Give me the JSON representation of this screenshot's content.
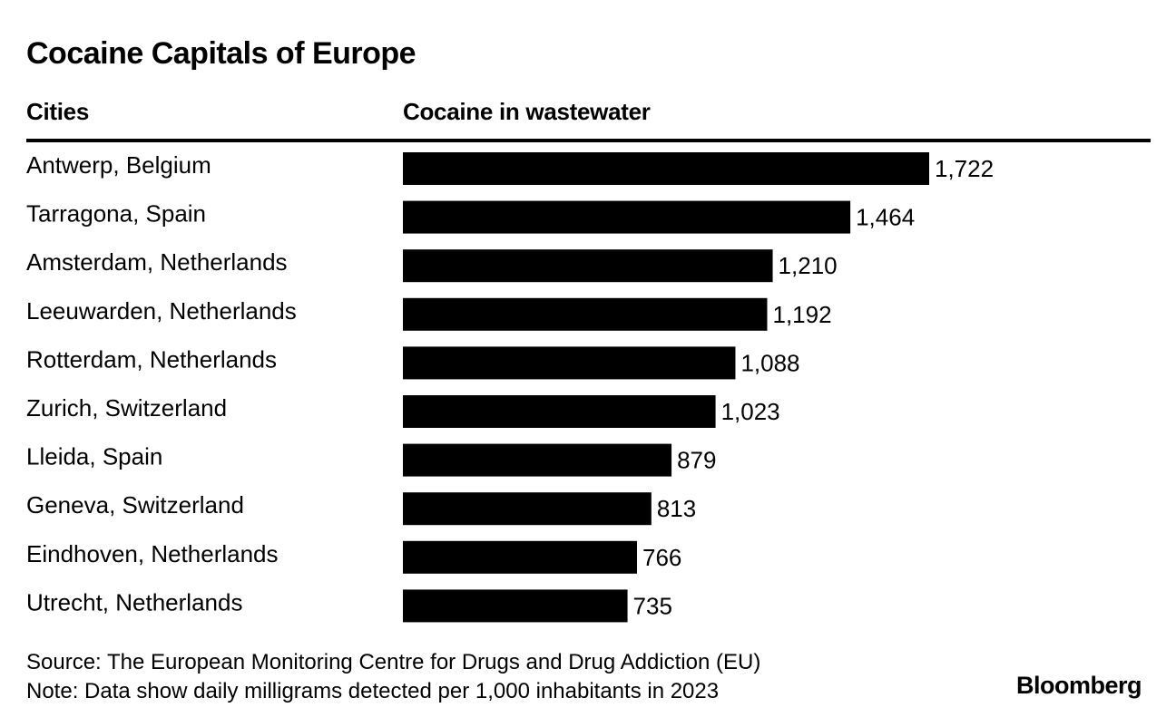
{
  "header": {
    "title": "Cocaine Capitals of Europe",
    "col_left": "Cities",
    "col_right": "Cocaine in wastewater"
  },
  "chart_data": {
    "type": "bar",
    "orientation": "horizontal",
    "title": "Cocaine Capitals of Europe",
    "xlabel": "Cocaine in wastewater",
    "ylabel": "Cities",
    "categories": [
      "Antwerp, Belgium",
      "Tarragona, Spain",
      "Amsterdam, Netherlands",
      "Leeuwarden, Netherlands",
      "Rotterdam, Netherlands",
      "Zurich, Switzerland",
      "Lleida, Spain",
      "Geneva, Switzerland",
      "Eindhoven, Netherlands",
      "Utrecht, Netherlands"
    ],
    "values": [
      1722,
      1464,
      1210,
      1192,
      1088,
      1023,
      879,
      813,
      766,
      735
    ],
    "value_labels": [
      "1,722",
      "1,464",
      "1,210",
      "1,192",
      "1,088",
      "1,023",
      "879",
      "813",
      "766",
      "735"
    ],
    "xlim": [
      0,
      1722
    ],
    "grid": false,
    "bar_color": "#000000"
  },
  "footer": {
    "source": "Source: The European Monitoring Centre for Drugs and Drug Addiction (EU)",
    "note": "Note: Data show daily milligrams detected per 1,000 inhabitants in 2023",
    "brand": "Bloomberg"
  }
}
